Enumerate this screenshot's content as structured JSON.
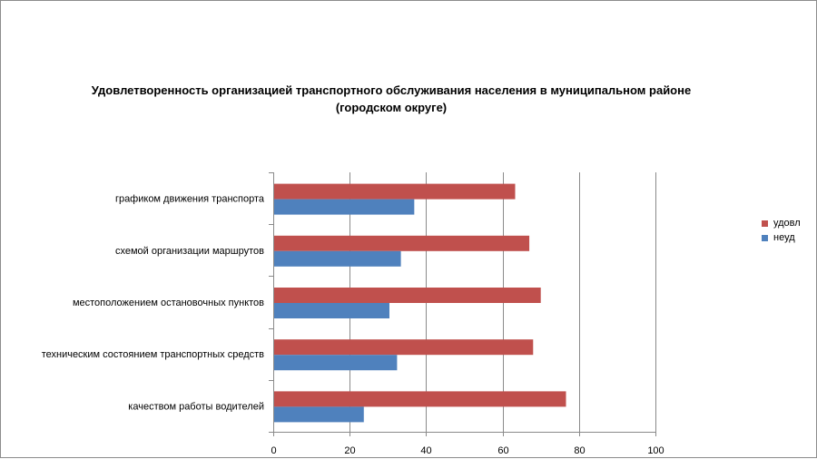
{
  "chart_data": {
    "type": "bar",
    "orientation": "horizontal",
    "title": [
      "Удовлетворенность организацией транспортного обслуживания населения в муниципальном районе",
      "(городском округе)"
    ],
    "categories": [
      "графиком движения транспорта",
      "схемой организации маршрутов",
      "местоположением остановочных пунктов",
      "техническим состоянием транспортных средств",
      "качеством работы водителей"
    ],
    "series": [
      {
        "name": "удовл",
        "color": "#C0504D",
        "values": [
          63.3,
          67,
          70,
          68,
          76.6
        ]
      },
      {
        "name": "неуд",
        "color": "#4F81BD",
        "values": [
          36.9,
          33.4,
          30.4,
          32.4,
          23.7
        ]
      }
    ],
    "xlim": [
      0,
      100
    ],
    "xticks": [
      0,
      20,
      40,
      60,
      80,
      100
    ],
    "grid": true,
    "legend_position": "right"
  }
}
